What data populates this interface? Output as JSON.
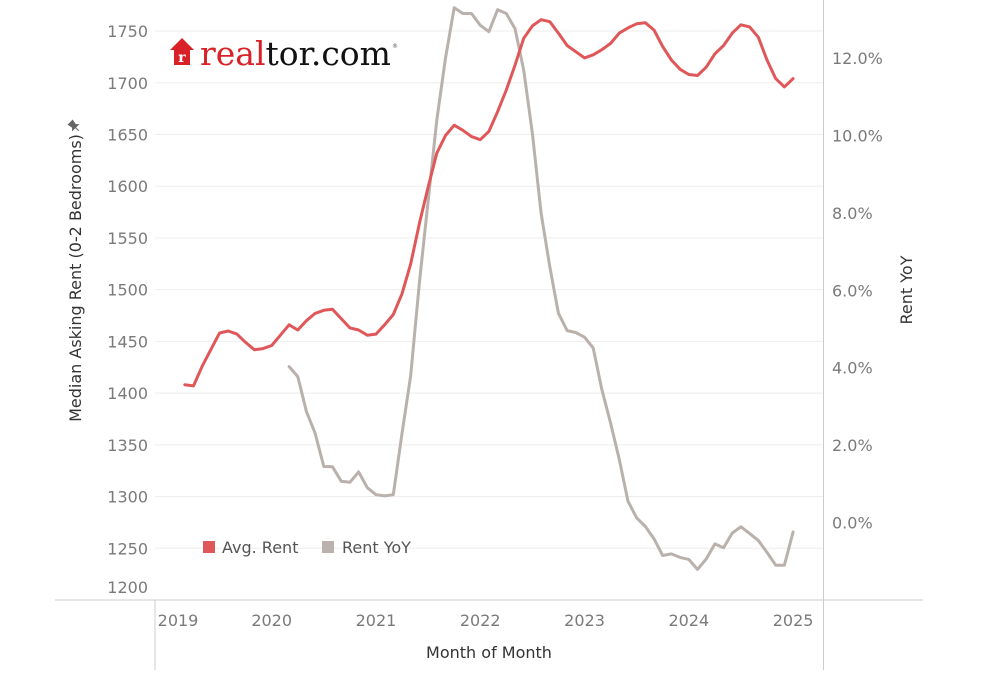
{
  "logo": {
    "text_red": "real",
    "text_black": "tor.com",
    "mark": "®",
    "icon": "house-r-icon"
  },
  "chart_data": {
    "type": "line",
    "title": "",
    "xlabel": "Month of Month",
    "ylabel_left": "Median Asking Rent (0-2 Bedrooms)",
    "ylabel_left_icon": "pin-icon",
    "ylabel_right": "Rent YoY",
    "x_ticks": [
      "2019",
      "2020",
      "2021",
      "2022",
      "2023",
      "2024",
      "2025"
    ],
    "y_left_ticks": [
      "1750",
      "1700",
      "1650",
      "1600",
      "1550",
      "1500",
      "1450",
      "1400",
      "1350",
      "1300",
      "1250",
      "1200"
    ],
    "y_right_ticks": [
      "12.0%",
      "10.0%",
      "8.0%",
      "6.0%",
      "4.0%",
      "2.0%",
      "0.0%"
    ],
    "ylim_left": [
      1200,
      1780
    ],
    "ylim_right": [
      -2.0,
      13.5
    ],
    "grid": "horizontal",
    "legend_position": "bottom-left",
    "x_start": "2019-03",
    "x_end": "2025-01",
    "series": [
      {
        "name": "Avg. Rent",
        "axis": "left",
        "color": "#e05759",
        "values": [
          1408,
          1407,
          1426,
          1442,
          1458,
          1460,
          1457,
          1449,
          1442,
          1443,
          1446,
          1456,
          1466,
          1461,
          1470,
          1477,
          1480,
          1481,
          1472,
          1463,
          1461,
          1456,
          1457,
          1466,
          1476,
          1496,
          1525,
          1564,
          1599,
          1632,
          1649,
          1659,
          1654,
          1648,
          1645,
          1653,
          1672,
          1693,
          1717,
          1743,
          1755,
          1761,
          1759,
          1748,
          1736,
          1730,
          1724,
          1727,
          1732,
          1738,
          1748,
          1753,
          1757,
          1758,
          1751,
          1735,
          1722,
          1713,
          1708,
          1707,
          1715,
          1728,
          1736,
          1748,
          1756,
          1754,
          1744,
          1722,
          1704,
          1696,
          1704
        ]
      },
      {
        "name": "Rent YoY",
        "axis": "right",
        "unit": "%",
        "color": "#bab0ac",
        "values": [
          null,
          null,
          null,
          null,
          null,
          null,
          null,
          null,
          null,
          null,
          null,
          null,
          4.03,
          3.77,
          2.87,
          2.31,
          1.45,
          1.44,
          1.07,
          1.04,
          1.31,
          0.9,
          0.72,
          0.69,
          0.72,
          2.3,
          3.8,
          6.2,
          8.3,
          10.4,
          12.0,
          13.3,
          13.15,
          13.15,
          12.85,
          12.68,
          13.25,
          13.15,
          12.76,
          11.69,
          10.05,
          7.99,
          6.61,
          5.41,
          4.96,
          4.91,
          4.79,
          4.51,
          3.43,
          2.57,
          1.63,
          0.55,
          0.12,
          -0.1,
          -0.42,
          -0.85,
          -0.81,
          -0.9,
          -0.95,
          -1.21,
          -0.94,
          -0.55,
          -0.65,
          -0.27,
          -0.11,
          -0.28,
          -0.46,
          -0.77,
          -1.1,
          -1.1,
          -0.24
        ]
      }
    ]
  }
}
